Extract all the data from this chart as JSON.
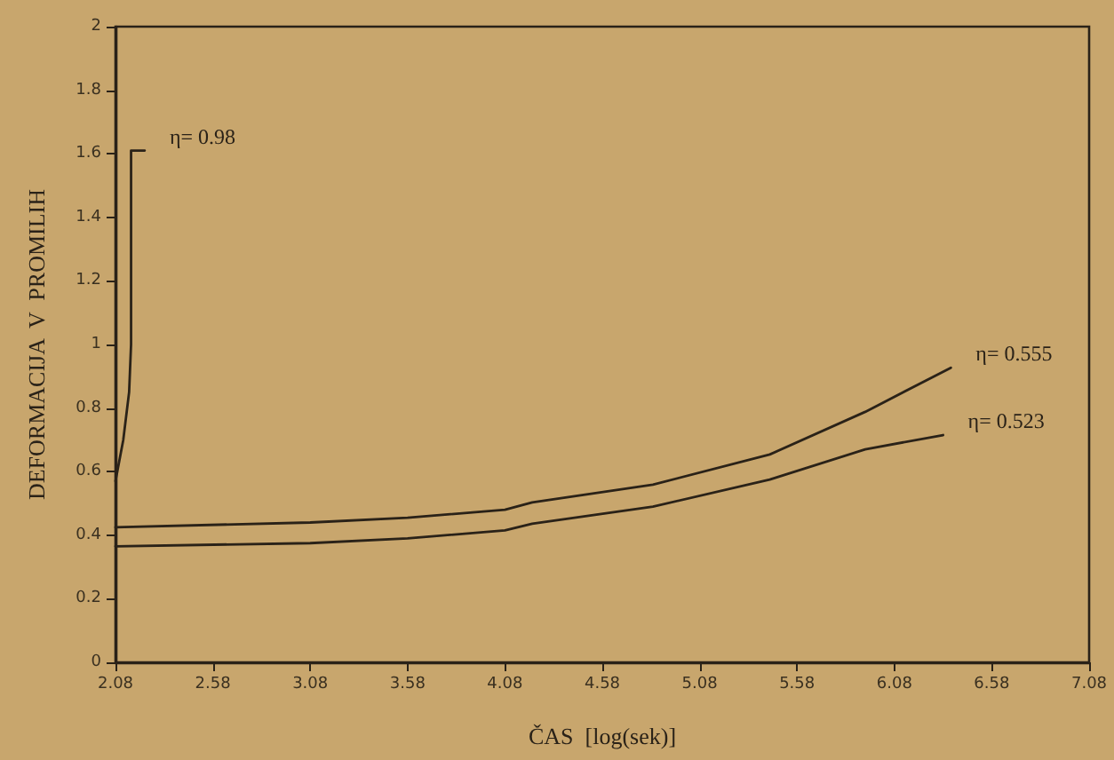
{
  "chart_data": {
    "type": "line",
    "xlabel": "ČAS  [log(sek)]",
    "ylabel": "DEFORMACIJA  V  PROMILIH",
    "xlim": [
      2.08,
      7.08
    ],
    "xticks": [
      2.08,
      2.58,
      3.08,
      3.58,
      4.08,
      4.58,
      5.08,
      5.58,
      6.08,
      6.58,
      7.08
    ],
    "ylim": [
      0,
      2
    ],
    "yticks": [
      0,
      0.2,
      0.4,
      0.6,
      0.8,
      1,
      1.2,
      1.4,
      1.6,
      1.8,
      2
    ],
    "grid": false,
    "legend": false,
    "marker": "none",
    "line_style": "solid",
    "series": [
      {
        "name": "η= 0.98",
        "color": "#2a2218",
        "x": [
          2.08,
          2.12,
          2.15,
          2.16,
          2.16,
          2.23
        ],
        "values": [
          0.57,
          0.7,
          0.85,
          1.0,
          1.61,
          1.61
        ]
      },
      {
        "name": "η= 0.555",
        "color": "#2a2218",
        "x": [
          2.08,
          3.08,
          3.58,
          4.08,
          4.22,
          4.84,
          5.44,
          5.93,
          6.37
        ],
        "values": [
          0.425,
          0.44,
          0.455,
          0.48,
          0.503,
          0.559,
          0.654,
          0.788,
          0.927
        ]
      },
      {
        "name": "η= 0.523",
        "color": "#2a2218",
        "x": [
          2.08,
          3.08,
          3.58,
          4.08,
          4.22,
          4.84,
          5.44,
          5.93,
          6.33
        ],
        "values": [
          0.365,
          0.375,
          0.39,
          0.415,
          0.436,
          0.49,
          0.575,
          0.67,
          0.715
        ]
      }
    ]
  }
}
